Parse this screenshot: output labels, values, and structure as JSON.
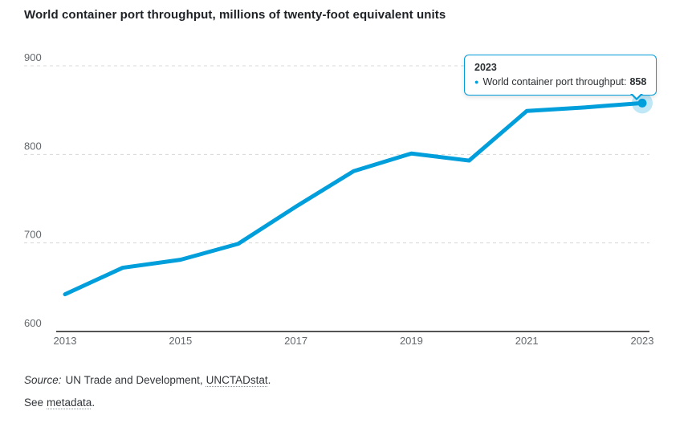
{
  "page": {
    "title": "World container port throughput, millions of twenty-foot equivalent units"
  },
  "chart_data": {
    "type": "line",
    "title": "World container port throughput, millions of twenty-foot equivalent units",
    "x": [
      2013,
      2014,
      2015,
      2016,
      2017,
      2018,
      2019,
      2020,
      2021,
      2022,
      2023
    ],
    "series": [
      {
        "name": "World container port throughput",
        "values": [
          642,
          672,
          681,
          699,
          741,
          781,
          801,
          793,
          849,
          853,
          858
        ]
      }
    ],
    "xticks": [
      "2013",
      "2015",
      "2017",
      "2019",
      "2021",
      "2023"
    ],
    "yticks": [
      600,
      700,
      800,
      900
    ],
    "ylim": [
      600,
      900
    ],
    "xlabel": "",
    "ylabel": "",
    "grid": "horizontal-dashed",
    "legend": "none",
    "line_color": "#009edb",
    "highlighted_point": {
      "x": 2023,
      "value": 858
    }
  },
  "tooltip": {
    "year": "2023",
    "series_label": "World container port throughput:",
    "value": "858"
  },
  "footer": {
    "source_label": "Source:",
    "source_text": "UN Trade and Development,",
    "source_link": "UNCTADstat",
    "source_suffix": ".",
    "metadata_prefix": "See",
    "metadata_link": "metadata",
    "metadata_suffix": "."
  },
  "colors": {
    "accent": "#009edb",
    "halo": "rgba(0,158,219,0.25)",
    "grid": "#d8d8d8",
    "axis": "#1c1c1c",
    "tick_text": "#62686d",
    "title_text": "#1e2226"
  }
}
